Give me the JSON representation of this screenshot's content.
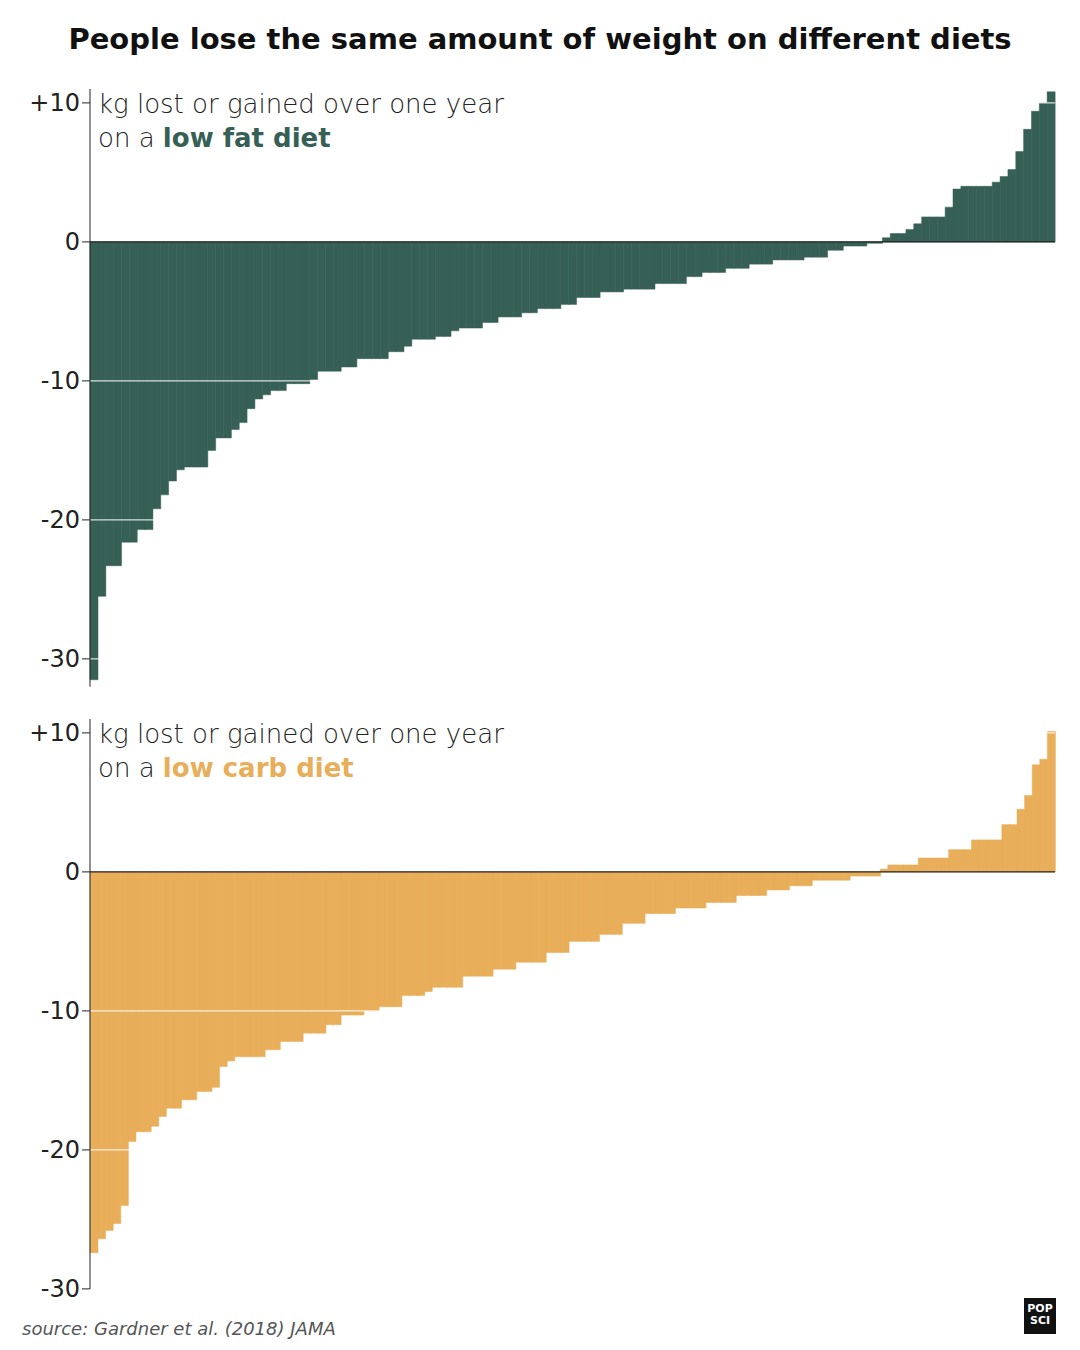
{
  "title": "People lose the same amount of weight on different diets",
  "source": "source: Gardner et al. (2018) JAMA",
  "logo": "POP SCI",
  "chart_data": [
    {
      "type": "bar",
      "title": "kg lost or gained over one year",
      "subtitle": "on a",
      "series": [
        {
          "name": "low fat diet",
          "color": "#365f55",
          "values": [
            -31.5,
            -25.5,
            -23.3,
            -23.3,
            -21.6,
            -21.6,
            -20.7,
            -20.7,
            -19.2,
            -18.2,
            -17.2,
            -16.4,
            -16.2,
            -16.2,
            -16.2,
            -15.0,
            -14.1,
            -14.1,
            -13.5,
            -13.0,
            -12.0,
            -11.3,
            -11.0,
            -10.7,
            -10.7,
            -10.2,
            -10.2,
            -10.2,
            -9.9,
            -9.3,
            -9.3,
            -9.3,
            -9.0,
            -9.0,
            -8.4,
            -8.4,
            -8.4,
            -8.4,
            -7.9,
            -7.9,
            -7.5,
            -7.0,
            -7.0,
            -7.0,
            -6.8,
            -6.8,
            -6.4,
            -6.2,
            -6.2,
            -6.2,
            -5.8,
            -5.8,
            -5.4,
            -5.4,
            -5.4,
            -5.1,
            -5.1,
            -4.8,
            -4.8,
            -4.8,
            -4.5,
            -4.5,
            -4.0,
            -4.0,
            -4.0,
            -3.6,
            -3.6,
            -3.6,
            -3.4,
            -3.4,
            -3.4,
            -3.4,
            -3.0,
            -3.0,
            -3.0,
            -3.0,
            -2.5,
            -2.5,
            -2.2,
            -2.2,
            -2.2,
            -1.9,
            -1.9,
            -1.9,
            -1.6,
            -1.6,
            -1.6,
            -1.3,
            -1.3,
            -1.3,
            -1.3,
            -1.1,
            -1.1,
            -1.1,
            -0.6,
            -0.6,
            -0.3,
            -0.3,
            -0.3,
            -0.1,
            -0.1,
            0.3,
            0.6,
            0.6,
            0.9,
            1.3,
            1.8,
            1.8,
            1.8,
            2.5,
            3.8,
            4.0,
            4.0,
            4.0,
            4.0,
            4.3,
            4.7,
            5.2,
            6.5,
            8.1,
            9.4,
            10.0,
            10.8
          ]
        }
      ],
      "ylim": [
        -32,
        11
      ],
      "yticks": [
        -30,
        -20,
        -10,
        0,
        {
          "value": 10,
          "label": "+10"
        }
      ],
      "grid": true,
      "tick_labels": "y"
    },
    {
      "type": "bar",
      "title": "kg lost or gained over one year",
      "subtitle": "on a",
      "series": [
        {
          "name": "low carb diet",
          "color": "#e8ae5a",
          "values": [
            -27.4,
            -26.4,
            -25.8,
            -25.3,
            -24.0,
            -19.4,
            -18.7,
            -18.7,
            -18.3,
            -17.6,
            -17.0,
            -17.0,
            -16.4,
            -16.4,
            -15.8,
            -15.8,
            -15.5,
            -14.0,
            -13.6,
            -13.3,
            -13.3,
            -13.3,
            -13.3,
            -12.8,
            -12.8,
            -12.2,
            -12.2,
            -12.2,
            -11.6,
            -11.6,
            -11.6,
            -11.0,
            -11.0,
            -10.3,
            -10.3,
            -10.3,
            -10.0,
            -10.0,
            -9.7,
            -9.7,
            -9.7,
            -8.9,
            -8.9,
            -8.9,
            -8.6,
            -8.3,
            -8.3,
            -8.3,
            -8.3,
            -7.5,
            -7.5,
            -7.5,
            -7.5,
            -7.0,
            -7.0,
            -7.0,
            -6.5,
            -6.5,
            -6.5,
            -6.5,
            -5.8,
            -5.8,
            -5.8,
            -5.0,
            -5.0,
            -5.0,
            -5.0,
            -4.5,
            -4.5,
            -4.5,
            -3.7,
            -3.7,
            -3.7,
            -3.0,
            -3.0,
            -3.0,
            -3.0,
            -2.6,
            -2.6,
            -2.6,
            -2.6,
            -2.2,
            -2.2,
            -2.2,
            -2.2,
            -1.7,
            -1.7,
            -1.7,
            -1.7,
            -1.3,
            -1.3,
            -1.3,
            -1.0,
            -1.0,
            -1.0,
            -0.6,
            -0.6,
            -0.6,
            -0.6,
            -0.6,
            -0.3,
            -0.3,
            -0.3,
            -0.3,
            0.2,
            0.5,
            0.5,
            0.5,
            0.5,
            1.0,
            1.0,
            1.0,
            1.0,
            1.6,
            1.6,
            1.6,
            2.3,
            2.3,
            2.3,
            2.3,
            3.4,
            3.4,
            4.5,
            5.5,
            7.7,
            8.1,
            10.1
          ]
        }
      ],
      "ylim": [
        -30,
        11
      ],
      "yticks": [
        -30,
        -20,
        -10,
        0,
        {
          "value": 10,
          "label": "+10"
        }
      ],
      "grid": true,
      "tick_labels": "y"
    }
  ]
}
